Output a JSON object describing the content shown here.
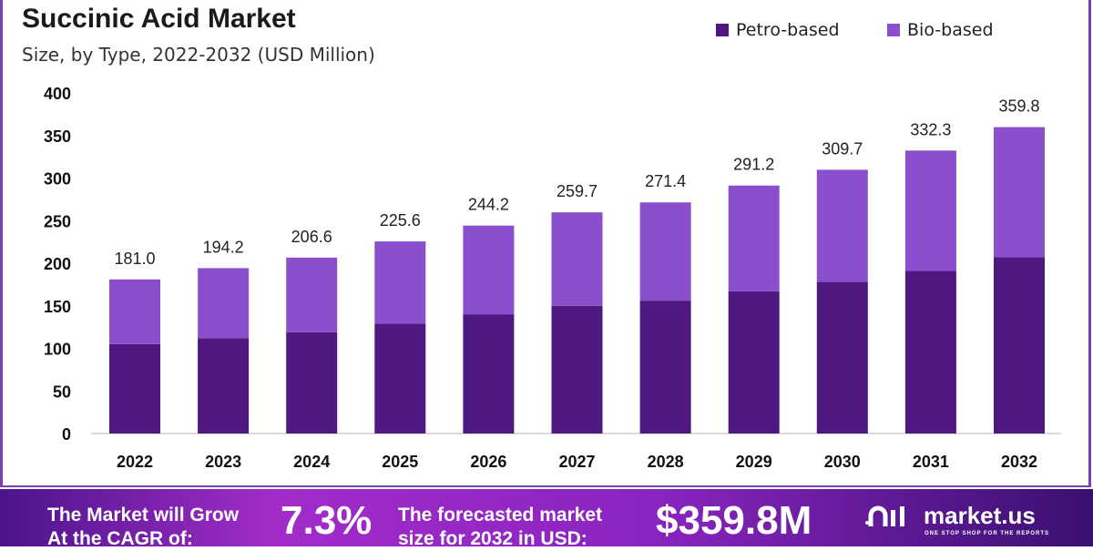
{
  "chart_data": {
    "type": "bar",
    "stacked": true,
    "title": "Succinic Acid Market",
    "subtitle": "Size, by Type, 2022-2032 (USD Million)",
    "categories": [
      "2022",
      "2023",
      "2024",
      "2025",
      "2026",
      "2027",
      "2028",
      "2029",
      "2030",
      "2031",
      "2032"
    ],
    "series": [
      {
        "name": "Petro-based",
        "color": "#4f1780",
        "values": [
          105,
          112,
          119,
          129,
          140,
          150,
          156,
          167,
          178,
          191,
          207
        ]
      },
      {
        "name": "Bio-based",
        "color": "#8b4fce",
        "values": [
          76.0,
          82.2,
          87.6,
          96.6,
          104.2,
          109.7,
          115.4,
          124.2,
          131.7,
          141.3,
          152.8
        ]
      }
    ],
    "totals": [
      "181.0",
      "194.2",
      "206.6",
      "225.6",
      "244.2",
      "259.7",
      "271.4",
      "291.2",
      "309.7",
      "332.3",
      "359.8"
    ],
    "yticks": [
      "0",
      "50",
      "100",
      "150",
      "200",
      "250",
      "300",
      "350",
      "400"
    ],
    "ylim": [
      0,
      400
    ],
    "grid": false,
    "legend_position": "top-right"
  },
  "footer": {
    "cagr_label_1": "The Market will Grow",
    "cagr_label_2": "At the CAGR of:",
    "cagr_value": "7.3%",
    "forecast_label_1": "The forecasted market",
    "forecast_label_2": "size for 2032 in USD:",
    "forecast_value": "$359.8M",
    "brand": "market.us",
    "tagline": "ONE STOP SHOP FOR THE REPORTS"
  }
}
